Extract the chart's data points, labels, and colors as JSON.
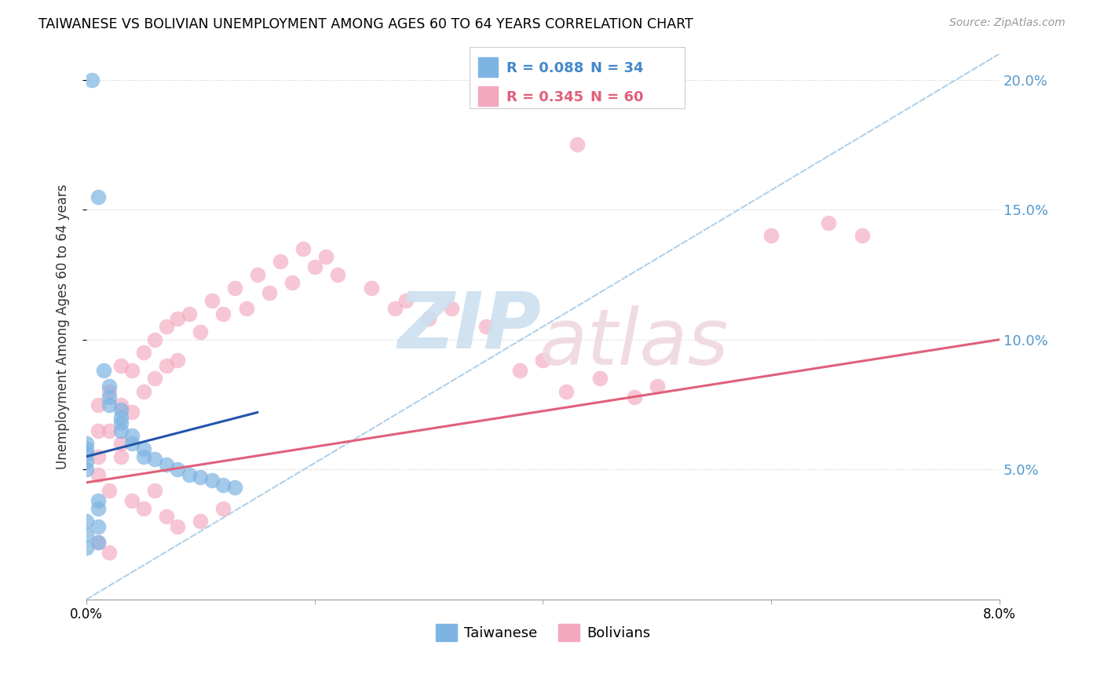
{
  "title": "TAIWANESE VS BOLIVIAN UNEMPLOYMENT AMONG AGES 60 TO 64 YEARS CORRELATION CHART",
  "source": "Source: ZipAtlas.com",
  "ylabel": "Unemployment Among Ages 60 to 64 years",
  "taiwan_color": "#7eb4e2",
  "bolivia_color": "#f4a8bf",
  "taiwan_line_color": "#2255aa",
  "bolivia_line_color": "#e0607a",
  "dashed_line_color": "#a8cce8",
  "taiwan_line_x": [
    0.0,
    0.015
  ],
  "taiwan_line_y": [
    0.055,
    0.072
  ],
  "bolivia_line_x": [
    0.0,
    0.08
  ],
  "bolivia_line_y": [
    0.045,
    0.1
  ],
  "dashed_line_x": [
    0.0,
    0.08
  ],
  "dashed_line_y": [
    0.0,
    0.21
  ],
  "xlim": [
    0.0,
    0.08
  ],
  "ylim": [
    0.0,
    0.21
  ],
  "yticks": [
    0.05,
    0.1,
    0.15,
    0.2
  ],
  "ytick_labels": [
    "5.0%",
    "10.0%",
    "15.0%",
    "20.0%"
  ],
  "xtick_labels": [
    "0.0%",
    "8.0%"
  ],
  "legend_tw_r": "R = 0.088",
  "legend_tw_n": "N = 34",
  "legend_bo_r": "R = 0.345",
  "legend_bo_n": "N = 60",
  "legend_tw_color": "#7eb4e2",
  "legend_bo_color": "#f4a8bf",
  "legend_text_tw_color": "#4488cc",
  "legend_text_bo_color": "#e0607a",
  "bottom_legend_tw": "Taiwanese",
  "bottom_legend_bo": "Bolivians",
  "watermark_zip_color": "#cce0f0",
  "watermark_atlas_color": "#f0d8e0",
  "tw_x": [
    0.0005,
    0.001,
    0.0015,
    0.002,
    0.002,
    0.002,
    0.003,
    0.003,
    0.003,
    0.003,
    0.004,
    0.004,
    0.005,
    0.005,
    0.006,
    0.007,
    0.008,
    0.009,
    0.01,
    0.011,
    0.012,
    0.013,
    0.0,
    0.0,
    0.0,
    0.0,
    0.0,
    0.001,
    0.001,
    0.001,
    0.001,
    0.0,
    0.0,
    0.0
  ],
  "tw_y": [
    0.2,
    0.155,
    0.088,
    0.082,
    0.078,
    0.075,
    0.073,
    0.07,
    0.068,
    0.065,
    0.063,
    0.06,
    0.058,
    0.055,
    0.054,
    0.052,
    0.05,
    0.048,
    0.047,
    0.046,
    0.044,
    0.043,
    0.06,
    0.058,
    0.056,
    0.053,
    0.05,
    0.038,
    0.035,
    0.028,
    0.022,
    0.03,
    0.025,
    0.02
  ],
  "bo_x": [
    0.001,
    0.001,
    0.001,
    0.002,
    0.002,
    0.003,
    0.003,
    0.003,
    0.004,
    0.004,
    0.005,
    0.005,
    0.006,
    0.006,
    0.007,
    0.007,
    0.008,
    0.008,
    0.009,
    0.01,
    0.011,
    0.012,
    0.013,
    0.014,
    0.015,
    0.016,
    0.017,
    0.018,
    0.019,
    0.02,
    0.021,
    0.022,
    0.025,
    0.027,
    0.028,
    0.03,
    0.032,
    0.035,
    0.038,
    0.04,
    0.042,
    0.045,
    0.048,
    0.05,
    0.043,
    0.06,
    0.065,
    0.068,
    0.001,
    0.002,
    0.003,
    0.004,
    0.005,
    0.006,
    0.007,
    0.008,
    0.01,
    0.012,
    0.001,
    0.002
  ],
  "bo_y": [
    0.075,
    0.065,
    0.055,
    0.08,
    0.065,
    0.09,
    0.075,
    0.06,
    0.088,
    0.072,
    0.095,
    0.08,
    0.1,
    0.085,
    0.105,
    0.09,
    0.108,
    0.092,
    0.11,
    0.103,
    0.115,
    0.11,
    0.12,
    0.112,
    0.125,
    0.118,
    0.13,
    0.122,
    0.135,
    0.128,
    0.132,
    0.125,
    0.12,
    0.112,
    0.115,
    0.108,
    0.112,
    0.105,
    0.088,
    0.092,
    0.08,
    0.085,
    0.078,
    0.082,
    0.175,
    0.14,
    0.145,
    0.14,
    0.048,
    0.042,
    0.055,
    0.038,
    0.035,
    0.042,
    0.032,
    0.028,
    0.03,
    0.035,
    0.022,
    0.018
  ]
}
